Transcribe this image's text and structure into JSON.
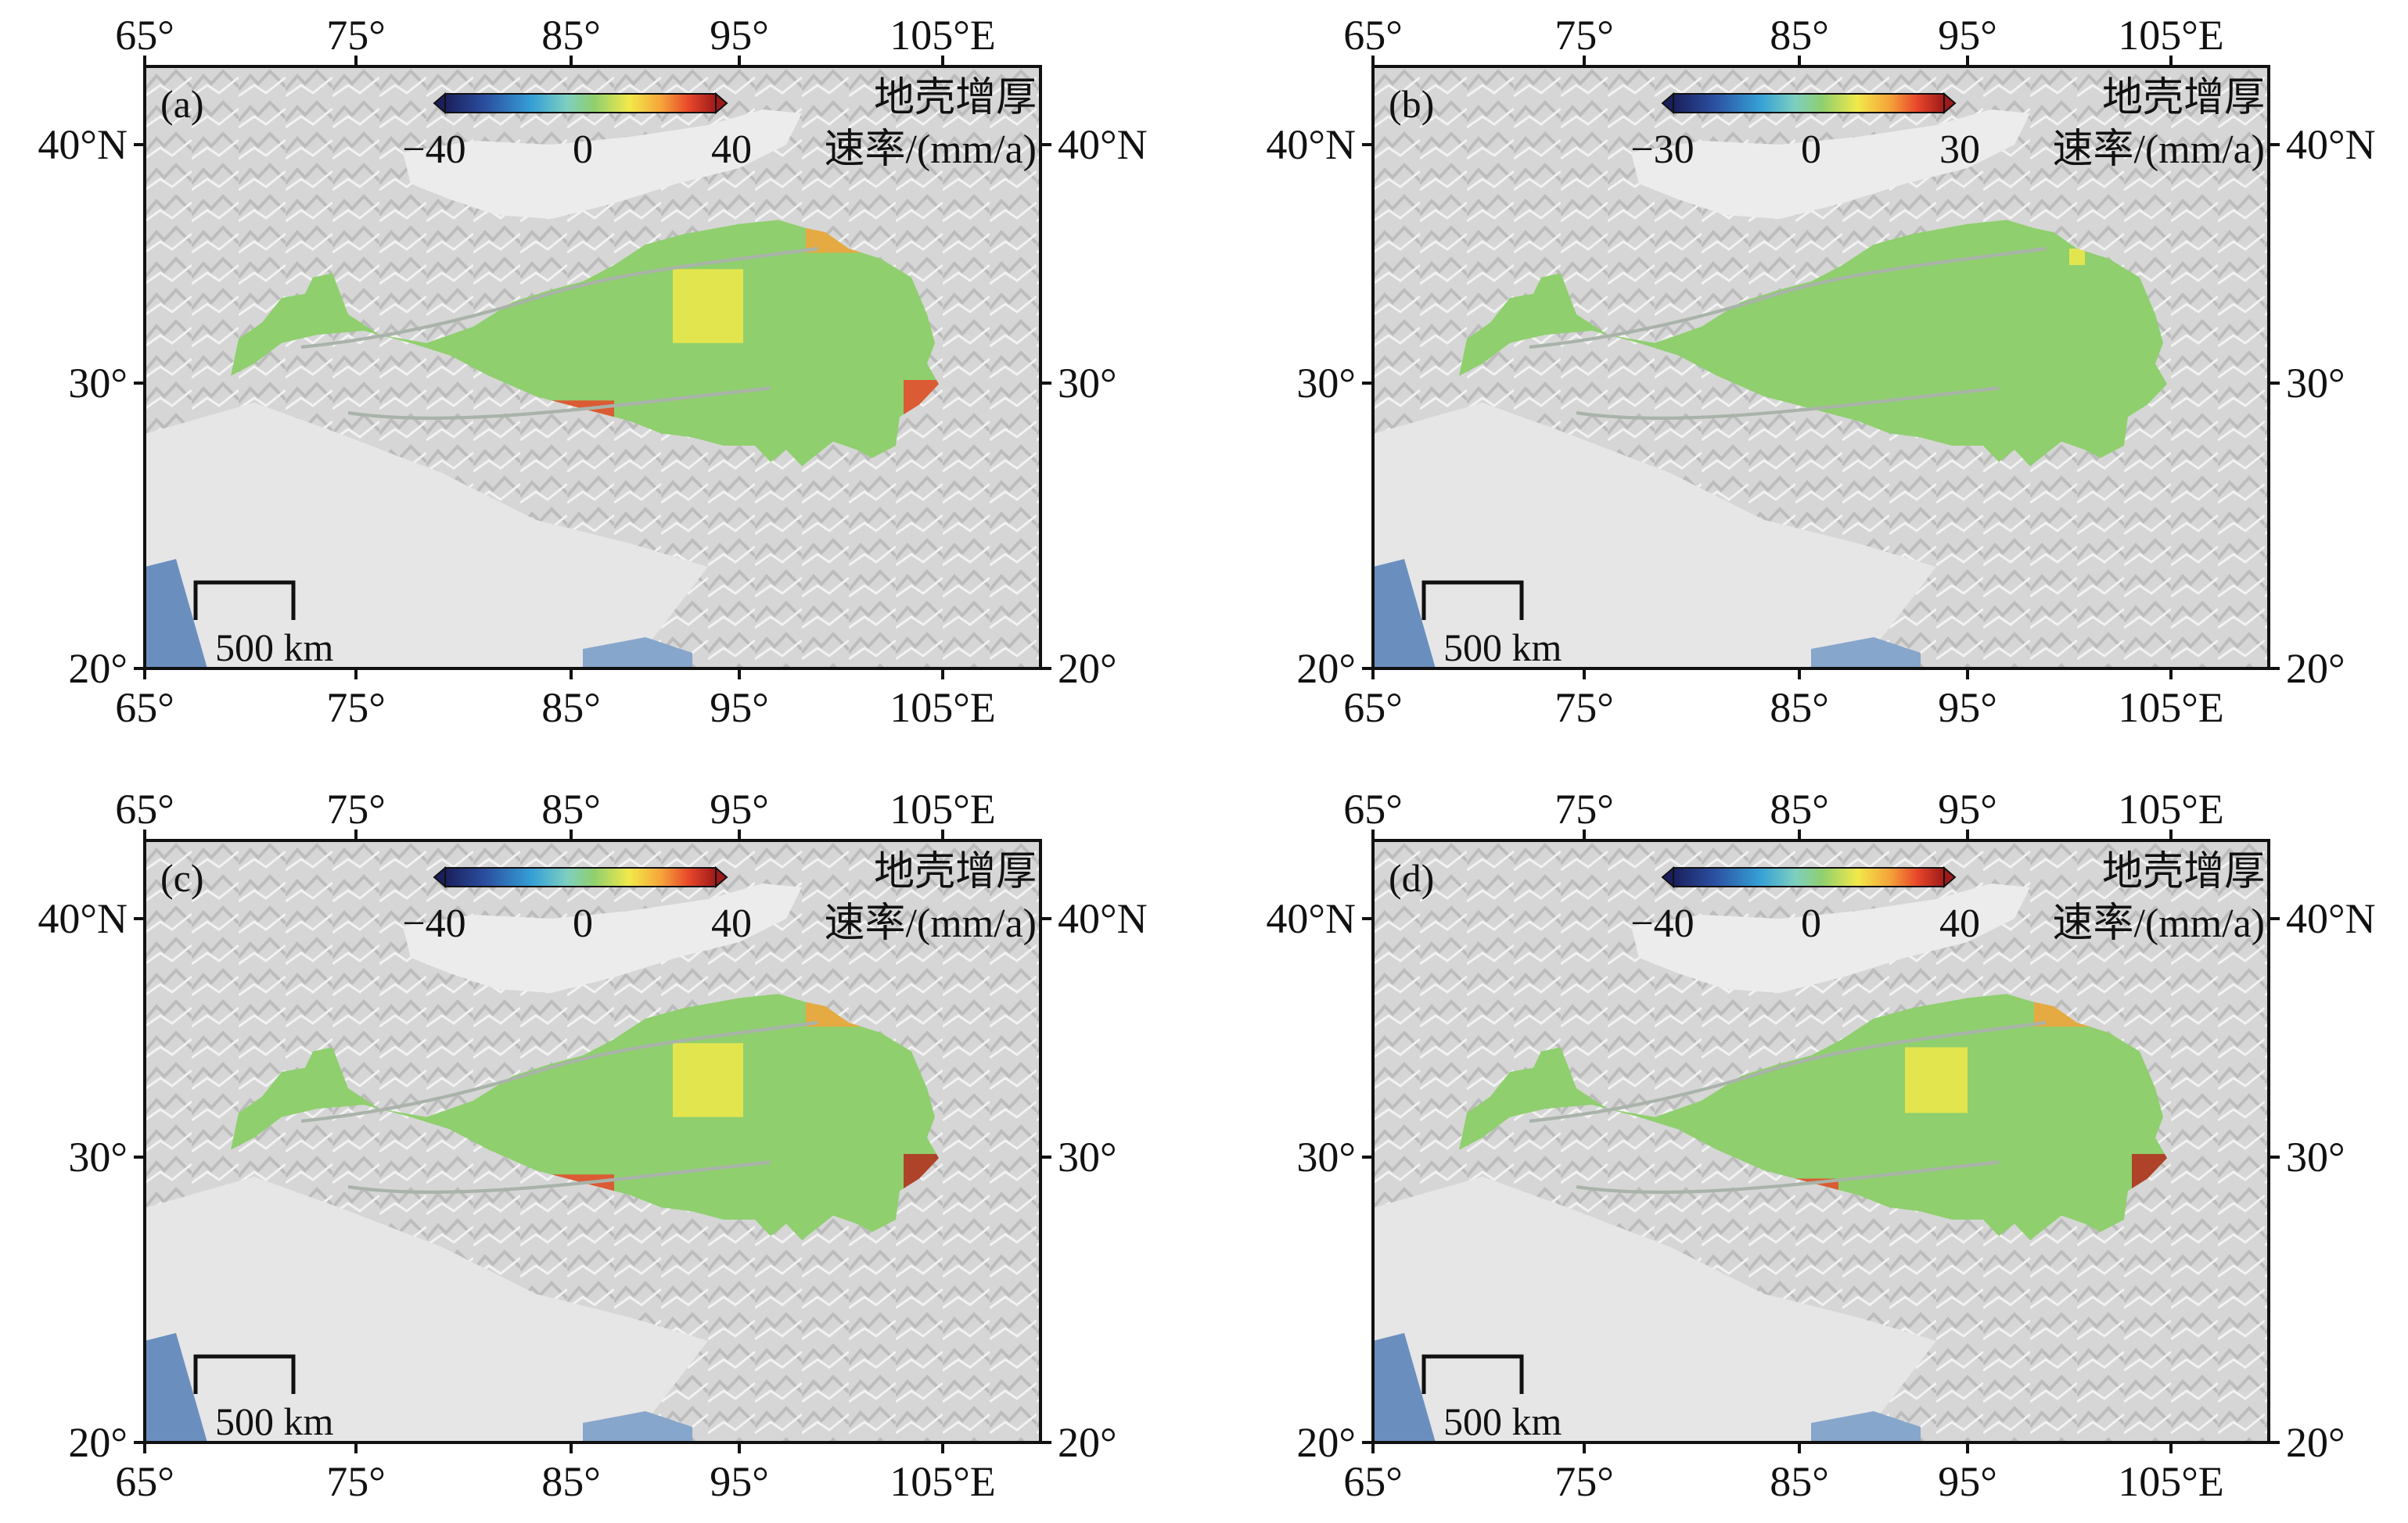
{
  "map": {
    "lon_ticks": [
      "65°",
      "75°",
      "85°",
      "95°",
      "105°E"
    ],
    "lat_ticks": [
      "20°",
      "30°",
      "40°N"
    ],
    "scale_bar_label": "500 km",
    "colorbar_title_line1": "地壳增厚",
    "colorbar_title_line2": "速率/(mm/a)",
    "colormap": [
      "#1a1f5c",
      "#2b4fa0",
      "#35a0d6",
      "#7dcfc0",
      "#8fcf6e",
      "#f2e94a",
      "#f5a33a",
      "#e8472a",
      "#9e1a1a"
    ],
    "background_colors": {
      "relief": "#d9d9d9",
      "basin": "#ececec",
      "ocean": "#6a8fbf"
    }
  },
  "panels": [
    {
      "id": "a",
      "label": "(a)",
      "cb_min": "−40",
      "cb_mid": "0",
      "cb_max": "40"
    },
    {
      "id": "b",
      "label": "(b)",
      "cb_min": "−30",
      "cb_mid": "0",
      "cb_max": "30"
    },
    {
      "id": "c",
      "label": "(c)",
      "cb_min": "−40",
      "cb_mid": "0",
      "cb_max": "40"
    },
    {
      "id": "d",
      "label": "(d)",
      "cb_min": "−40",
      "cb_mid": "0",
      "cb_max": "40"
    }
  ]
}
